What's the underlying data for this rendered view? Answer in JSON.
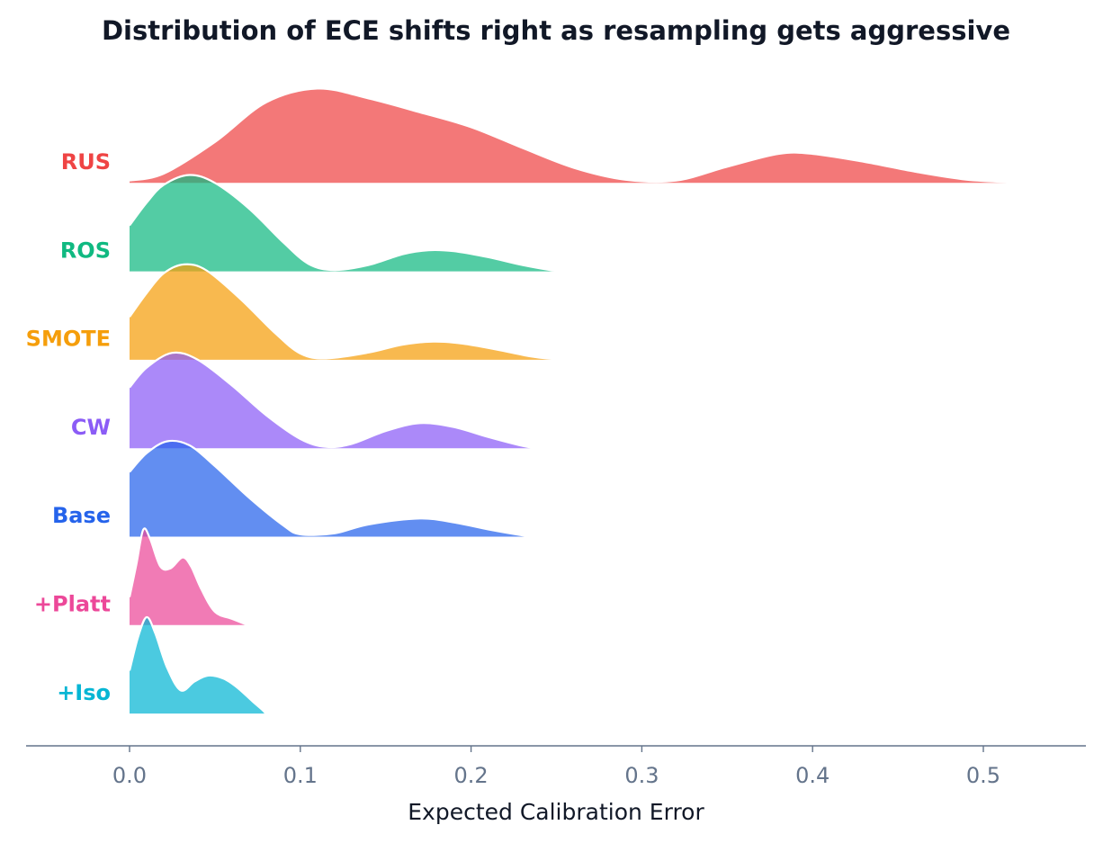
{
  "chart_data": {
    "type": "ridgeline",
    "title": "Distribution of ECE shifts right as resampling gets aggressive",
    "xlabel": "Expected Calibration Error",
    "ylabel": "",
    "xlim": [
      -0.06,
      0.56
    ],
    "x_ticks": [
      "0.0",
      "0.1",
      "0.2",
      "0.3",
      "0.4",
      "0.5"
    ],
    "x_tick_values": [
      0.0,
      0.1,
      0.2,
      0.3,
      0.4,
      0.5
    ],
    "grid": false,
    "series": [
      {
        "name": "RUS",
        "color": "#ef4444",
        "density": [
          [
            0.0,
            0.03
          ],
          [
            0.02,
            0.1
          ],
          [
            0.05,
            0.42
          ],
          [
            0.08,
            0.82
          ],
          [
            0.11,
            0.96
          ],
          [
            0.14,
            0.86
          ],
          [
            0.17,
            0.72
          ],
          [
            0.2,
            0.57
          ],
          [
            0.23,
            0.36
          ],
          [
            0.26,
            0.16
          ],
          [
            0.29,
            0.04
          ],
          [
            0.32,
            0.03
          ],
          [
            0.35,
            0.17
          ],
          [
            0.38,
            0.3
          ],
          [
            0.4,
            0.3
          ],
          [
            0.43,
            0.22
          ],
          [
            0.46,
            0.12
          ],
          [
            0.49,
            0.04
          ],
          [
            0.52,
            0.01
          ],
          [
            0.53,
            0.0
          ]
        ]
      },
      {
        "name": "ROS",
        "color": "#10b981",
        "density": [
          [
            0.0,
            0.47
          ],
          [
            0.01,
            0.7
          ],
          [
            0.02,
            0.88
          ],
          [
            0.035,
            0.98
          ],
          [
            0.05,
            0.9
          ],
          [
            0.07,
            0.64
          ],
          [
            0.09,
            0.3
          ],
          [
            0.105,
            0.08
          ],
          [
            0.12,
            0.02
          ],
          [
            0.14,
            0.07
          ],
          [
            0.16,
            0.18
          ],
          [
            0.175,
            0.22
          ],
          [
            0.19,
            0.21
          ],
          [
            0.21,
            0.15
          ],
          [
            0.23,
            0.07
          ],
          [
            0.25,
            0.01
          ],
          [
            0.26,
            0.0
          ]
        ]
      },
      {
        "name": "SMOTE",
        "color": "#f59e0b",
        "density": [
          [
            0.0,
            0.44
          ],
          [
            0.01,
            0.68
          ],
          [
            0.02,
            0.88
          ],
          [
            0.032,
            0.97
          ],
          [
            0.045,
            0.91
          ],
          [
            0.065,
            0.62
          ],
          [
            0.085,
            0.28
          ],
          [
            0.1,
            0.07
          ],
          [
            0.115,
            0.02
          ],
          [
            0.14,
            0.08
          ],
          [
            0.16,
            0.16
          ],
          [
            0.178,
            0.19
          ],
          [
            0.195,
            0.17
          ],
          [
            0.215,
            0.11
          ],
          [
            0.235,
            0.04
          ],
          [
            0.25,
            0.01
          ],
          [
            0.255,
            0.0
          ]
        ]
      },
      {
        "name": "CW",
        "color": "#8b5cf6",
        "density": [
          [
            0.0,
            0.62
          ],
          [
            0.01,
            0.82
          ],
          [
            0.025,
            0.97
          ],
          [
            0.04,
            0.9
          ],
          [
            0.06,
            0.64
          ],
          [
            0.08,
            0.34
          ],
          [
            0.1,
            0.1
          ],
          [
            0.115,
            0.02
          ],
          [
            0.13,
            0.05
          ],
          [
            0.15,
            0.18
          ],
          [
            0.17,
            0.26
          ],
          [
            0.19,
            0.22
          ],
          [
            0.21,
            0.12
          ],
          [
            0.23,
            0.03
          ],
          [
            0.24,
            0.0
          ]
        ]
      },
      {
        "name": "Base",
        "color": "#2563eb",
        "density": [
          [
            0.0,
            0.66
          ],
          [
            0.01,
            0.85
          ],
          [
            0.022,
            0.97
          ],
          [
            0.035,
            0.93
          ],
          [
            0.05,
            0.72
          ],
          [
            0.07,
            0.4
          ],
          [
            0.09,
            0.12
          ],
          [
            0.1,
            0.03
          ],
          [
            0.12,
            0.04
          ],
          [
            0.14,
            0.13
          ],
          [
            0.17,
            0.19
          ],
          [
            0.19,
            0.15
          ],
          [
            0.21,
            0.08
          ],
          [
            0.23,
            0.02
          ],
          [
            0.24,
            0.0
          ]
        ]
      },
      {
        "name": "+Platt",
        "color": "#ec4899",
        "density": [
          [
            0.0,
            0.29
          ],
          [
            0.004,
            0.62
          ],
          [
            0.008,
            0.97
          ],
          [
            0.012,
            0.88
          ],
          [
            0.018,
            0.6
          ],
          [
            0.024,
            0.58
          ],
          [
            0.031,
            0.69
          ],
          [
            0.036,
            0.6
          ],
          [
            0.042,
            0.37
          ],
          [
            0.05,
            0.14
          ],
          [
            0.06,
            0.07
          ],
          [
            0.07,
            0.0
          ]
        ]
      },
      {
        "name": "+Iso",
        "color": "#06b6d4",
        "density": [
          [
            0.0,
            0.44
          ],
          [
            0.005,
            0.78
          ],
          [
            0.01,
            0.98
          ],
          [
            0.015,
            0.82
          ],
          [
            0.022,
            0.47
          ],
          [
            0.03,
            0.24
          ],
          [
            0.038,
            0.33
          ],
          [
            0.046,
            0.39
          ],
          [
            0.055,
            0.36
          ],
          [
            0.063,
            0.27
          ],
          [
            0.072,
            0.13
          ],
          [
            0.078,
            0.04
          ],
          [
            0.08,
            0.0
          ]
        ]
      }
    ]
  }
}
